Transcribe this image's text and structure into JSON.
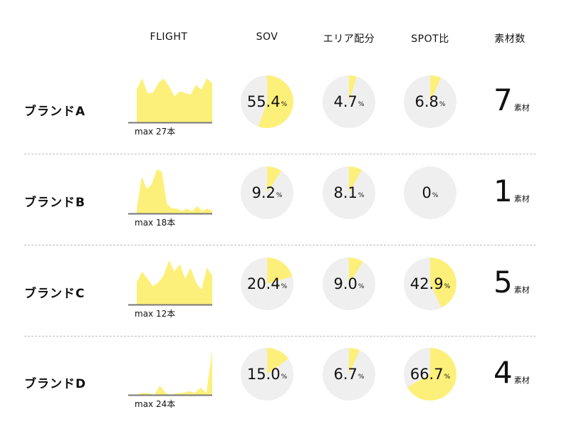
{
  "headers": [
    "FLIGHT",
    "SOV",
    "エリア配分",
    "SPOT比",
    "素材数"
  ],
  "colors": {
    "accent": "#fdf07a",
    "pie_bg": "#efefef",
    "baseline": "#777777",
    "divider": "#bdbdbd"
  },
  "chart_data": {
    "type": "table",
    "rows": [
      {
        "brand": "ブランドA",
        "flight": {
          "max_label": "max 27本",
          "values": [
            20,
            27,
            18,
            18,
            24,
            27,
            22,
            16,
            19,
            18,
            17,
            23,
            20,
            27,
            24
          ]
        },
        "sov": {
          "value": 55.4,
          "text": "55.4"
        },
        "area": {
          "value": 4.7,
          "text": "4.7"
        },
        "spot": {
          "value": 6.8,
          "text": "6.8"
        },
        "materials": {
          "count": "7",
          "unit": "素材"
        }
      },
      {
        "brand": "ブランドB",
        "flight": {
          "max_label": "max 18本",
          "values": [
            2,
            15,
            10,
            12,
            18,
            17,
            4,
            2,
            2,
            1,
            2,
            1,
            3,
            1,
            2,
            1
          ]
        },
        "sov": {
          "value": 9.2,
          "text": "9.2"
        },
        "area": {
          "value": 8.1,
          "text": "8.1"
        },
        "spot": {
          "value": 0,
          "text": "0"
        },
        "materials": {
          "count": "1",
          "unit": "素材"
        }
      },
      {
        "brand": "ブランドC",
        "flight": {
          "max_label": "max 12本",
          "values": [
            6,
            9,
            7,
            5,
            6,
            8,
            12,
            9,
            11,
            7,
            10,
            6,
            4,
            10,
            8
          ]
        },
        "sov": {
          "value": 20.4,
          "text": "20.4"
        },
        "area": {
          "value": 9.0,
          "text": "9.0"
        },
        "spot": {
          "value": 42.9,
          "text": "42.9"
        },
        "materials": {
          "count": "5",
          "unit": "素材"
        }
      },
      {
        "brand": "ブランドD",
        "flight": {
          "max_label": "max 24本",
          "values": [
            0,
            1,
            1,
            0,
            5,
            1,
            0,
            1,
            1,
            2,
            1,
            4,
            1,
            24
          ]
        },
        "sov": {
          "value": 15.0,
          "text": "15.0"
        },
        "area": {
          "value": 6.7,
          "text": "6.7"
        },
        "spot": {
          "value": 66.7,
          "text": "66.7"
        },
        "materials": {
          "count": "4",
          "unit": "素材"
        }
      }
    ],
    "percent_unit": "%"
  }
}
